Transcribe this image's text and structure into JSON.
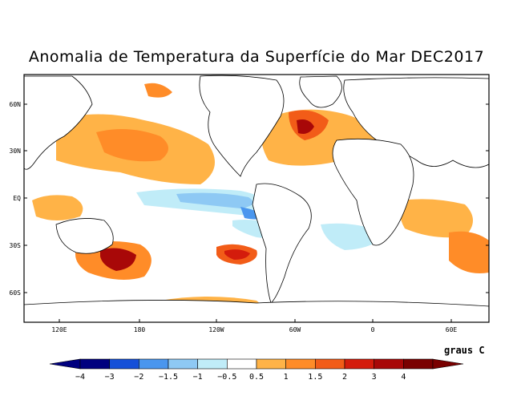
{
  "title": "Anomalia de Temperatura da Superfície do Mar DEC2017",
  "lat_labels": [
    "60N",
    "30N",
    "EQ",
    "30S",
    "60S"
  ],
  "lon_labels": [
    "120E",
    "180",
    "120W",
    "60W",
    "0",
    "60E"
  ],
  "colorbar": {
    "units": "graus C",
    "labels": [
      "−4",
      "−3",
      "−2",
      "−1.5",
      "−1",
      "−0.5",
      "0.5",
      "1",
      "1.5",
      "2",
      "3",
      "4"
    ],
    "colors": [
      "#00007f",
      "#1550d8",
      "#4a96ee",
      "#8ec9f4",
      "#c0ecf8",
      "#ffffff",
      "#ffb347",
      "#ff8c28",
      "#f25c18",
      "#d41c0c",
      "#a80808",
      "#7a0000"
    ]
  }
}
